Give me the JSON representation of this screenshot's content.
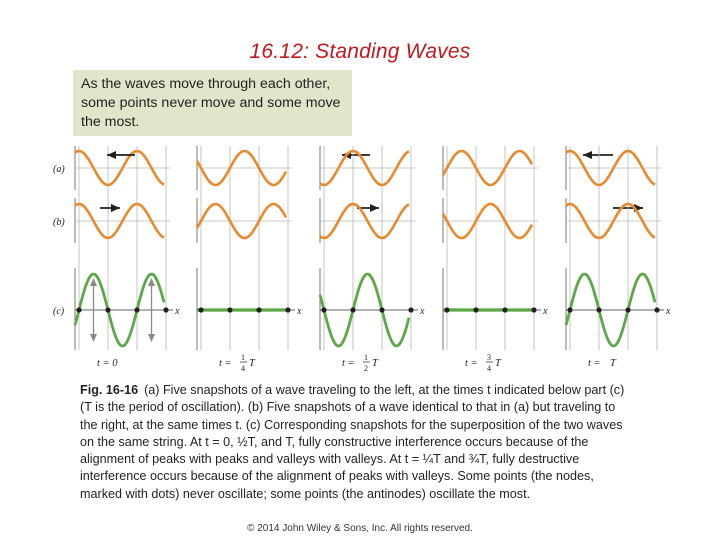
{
  "title": "16.12: Standing Waves",
  "intro": "As the waves move through each other, some points never move and some move the most.",
  "figure": {
    "row_labels": [
      "(a)",
      "(b)",
      "(c)"
    ],
    "axis_label": "x",
    "time_labels": [
      {
        "prefix": "t = ",
        "num": "0",
        "den": "",
        "suffix": ""
      },
      {
        "prefix": "t = ",
        "num": "1",
        "den": "4",
        "suffix": "T"
      },
      {
        "prefix": "t = ",
        "num": "1",
        "den": "2",
        "suffix": "T"
      },
      {
        "prefix": "t = ",
        "num": "3",
        "den": "4",
        "suffix": "T"
      },
      {
        "prefix": "t = ",
        "num": "",
        "den": "",
        "suffix": "T"
      }
    ],
    "colors": {
      "traveling_wave": "#e8892b",
      "standing_wave": "#5aa945",
      "guide": "#b8b8b8",
      "arrow": "#231f20",
      "node": "#231f20"
    },
    "phases_deg": [
      0,
      90,
      180,
      270,
      360
    ],
    "wave_a_direction": "left",
    "wave_b_direction": "right"
  },
  "caption": {
    "label": "Fig. 16-16",
    "text": "(a) Five snapshots of a wave traveling to the left, at the times t indicated below part (c) (T is the period of oscillation). (b) Five snapshots of a wave identical to that in (a) but traveling to the right, at the same times t. (c) Corresponding snapshots for the superposition of the two waves on the same string. At t = 0, ½T, and T, fully constructive interference occurs because of the alignment of peaks with peaks and valleys with valleys. At t = ¼T and ¾T, fully destructive interference occurs because of the alignment of peaks with valleys. Some points (the nodes, marked with dots) never oscillate; some points (the antinodes) oscillate the most."
  },
  "copyright": "© 2014 John Wiley & Sons, Inc. All rights reserved."
}
